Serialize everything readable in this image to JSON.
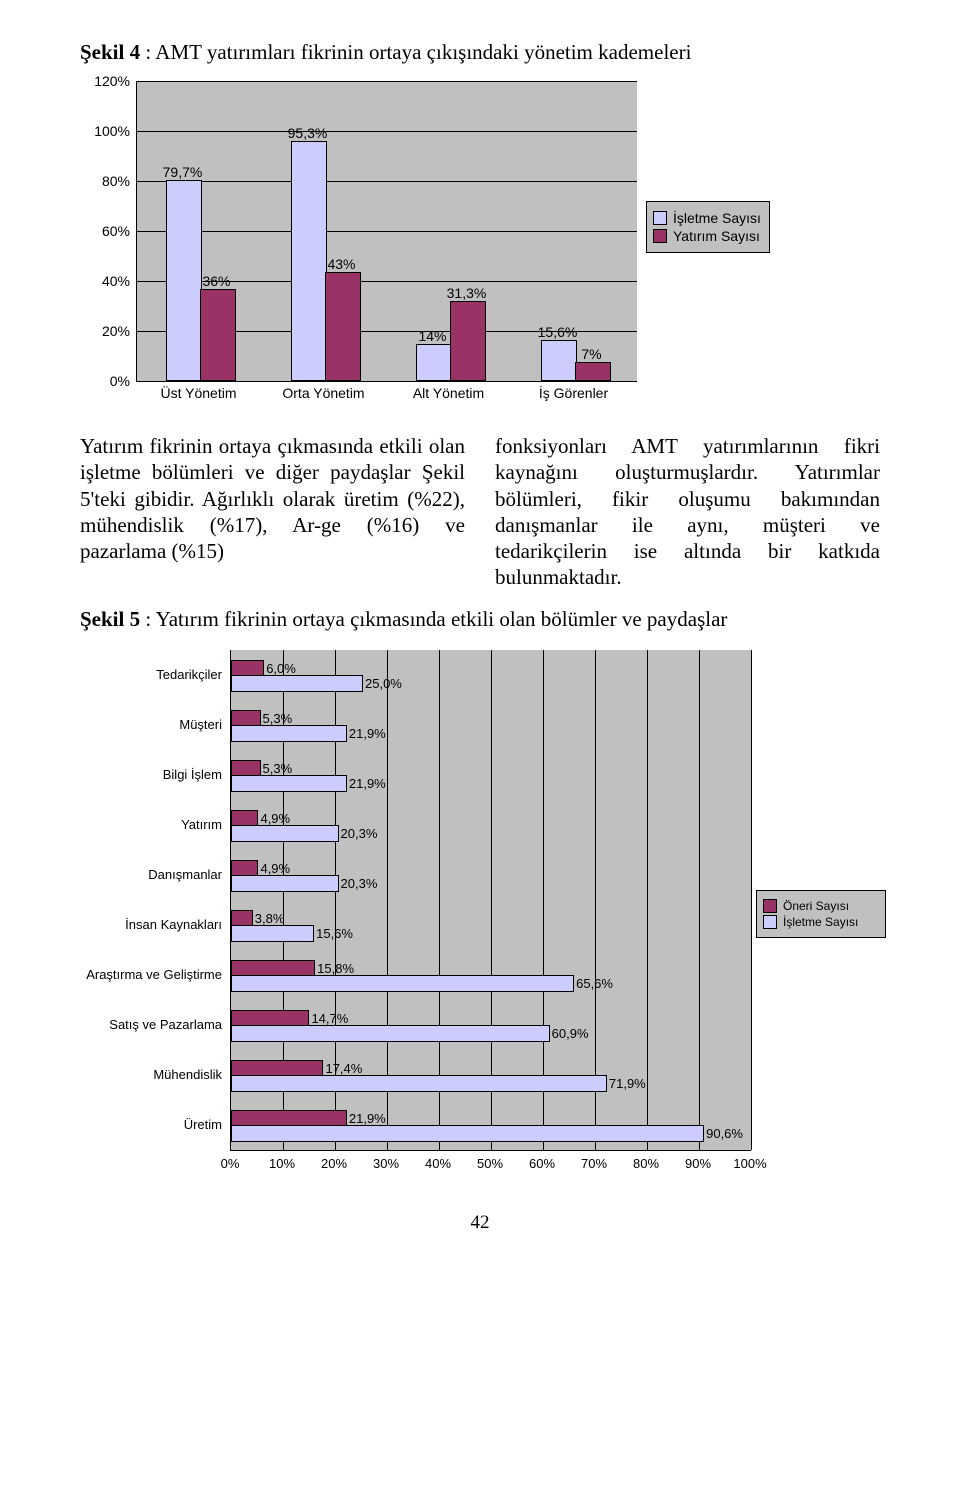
{
  "figure4": {
    "title_prefix": "Şekil 4",
    "title_rest": " : AMT yatırımları fikrinin ortaya çıkışındaki yönetim kademeleri",
    "type": "bar",
    "background_color": "#c0c0c0",
    "grid_color": "#000000",
    "series_colors": {
      "isletme": "#ccccff",
      "yatirim": "#993366"
    },
    "ylim": [
      0,
      120
    ],
    "ytick_step": 20,
    "yticks": [
      "0%",
      "20%",
      "40%",
      "60%",
      "80%",
      "100%",
      "120%"
    ],
    "categories": [
      "Üst Yönetim",
      "Orta Yönetim",
      "Alt Yönetim",
      "İş Görenler"
    ],
    "series": [
      {
        "name": "İşletme Sayısı",
        "key": "isletme",
        "values": [
          79.7,
          95.3,
          14,
          15.6
        ],
        "labels": [
          "79,7%",
          "95,3%",
          "14%",
          "15,6%"
        ]
      },
      {
        "name": "Yatırım Sayısı",
        "key": "yatirim",
        "values": [
          36,
          43,
          31.3,
          7
        ],
        "labels": [
          "36%",
          "43%",
          "31,3%",
          "7%"
        ]
      }
    ],
    "legend": [
      "İşletme Sayısı",
      "Yatırım Sayısı"
    ]
  },
  "paragraph": {
    "left": "Yatırım fikrinin ortaya çıkmasında etkili olan işletme bölümleri ve diğer paydaşlar Şekil 5'teki gibidir. Ağırlıklı olarak üretim (%22), mühendislik (%17), Ar-ge (%16) ve pazarlama (%15)",
    "right": "fonksiyonları AMT yatırımlarının fikri kaynağını oluşturmuşlardır. Yatırımlar bölümleri, fikir oluşumu bakımından danışmanlar ile aynı, müşteri ve tedarikçilerin ise altında bir katkıda bulunmaktadır."
  },
  "figure5": {
    "title_prefix": "Şekil 5",
    "title_rest": " : Yatırım fikrinin ortaya çıkmasında etkili olan bölümler ve paydaşlar",
    "type": "bar_horizontal",
    "background_color": "#c0c0c0",
    "grid_color": "#000000",
    "series_colors": {
      "oneri": "#993366",
      "isletme": "#ccccff"
    },
    "xlim": [
      0,
      100
    ],
    "xtick_step": 10,
    "xticks": [
      "0%",
      "10%",
      "20%",
      "30%",
      "40%",
      "50%",
      "60%",
      "70%",
      "80%",
      "90%",
      "100%"
    ],
    "categories": [
      "Tedarikçiler",
      "Müşteri",
      "Bilgi İşlem",
      "Yatırım",
      "Danışmanlar",
      "İnsan Kaynakları",
      "Araştırma ve Geliştirme",
      "Satış ve Pazarlama",
      "Mühendislik",
      "Üretim"
    ],
    "series": [
      {
        "name": "Öneri Sayısı",
        "key": "oneri",
        "values": [
          6.0,
          5.3,
          5.3,
          4.9,
          4.9,
          3.8,
          15.8,
          14.7,
          17.4,
          21.9
        ],
        "labels": [
          "6,0%",
          "5,3%",
          "5,3%",
          "4,9%",
          "4,9%",
          "3,8%",
          "15,8%",
          "14,7%",
          "17,4%",
          "21,9%"
        ]
      },
      {
        "name": "İşletme Sayısı",
        "key": "isletme",
        "values": [
          25.0,
          21.9,
          21.9,
          20.3,
          20.3,
          15.6,
          65.6,
          60.9,
          71.9,
          90.6
        ],
        "labels": [
          "25,0%",
          "21,9%",
          "21,9%",
          "20,3%",
          "20,3%",
          "15,6%",
          "65,6%",
          "60,9%",
          "71,9%",
          "90,6%"
        ]
      }
    ],
    "legend": [
      "Öneri Sayısı",
      "İşletme Sayısı"
    ]
  },
  "page_number": "42"
}
